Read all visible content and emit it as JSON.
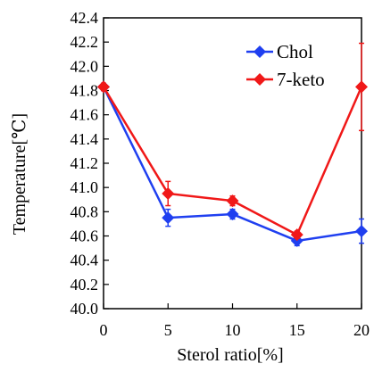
{
  "chart_data": {
    "type": "line",
    "title": "",
    "xlabel": "Sterol ratio[%]",
    "ylabel": "Temperature[℃]",
    "x": [
      0,
      5,
      10,
      15,
      20
    ],
    "xticks": [
      "0",
      "5",
      "10",
      "15",
      "20"
    ],
    "ylim": [
      40.0,
      42.4
    ],
    "yticks": [
      "40.0",
      "40.2",
      "40.4",
      "40.6",
      "40.8",
      "41.0",
      "41.2",
      "41.4",
      "41.6",
      "41.8",
      "42.0",
      "42.2",
      "42.4"
    ],
    "grid": false,
    "legend_position": "top-right",
    "series": [
      {
        "name": "Chol",
        "color": "#1f3ff0",
        "marker": "diamond",
        "values": [
          41.83,
          40.75,
          40.78,
          40.56,
          40.64
        ],
        "errors": [
          0.03,
          0.07,
          0.04,
          0.04,
          0.1
        ]
      },
      {
        "name": "7-keto",
        "color": "#f01818",
        "marker": "diamond",
        "values": [
          41.83,
          40.95,
          40.89,
          40.61,
          41.83
        ],
        "errors": [
          0.03,
          0.1,
          0.04,
          0.03,
          0.36
        ]
      }
    ]
  }
}
